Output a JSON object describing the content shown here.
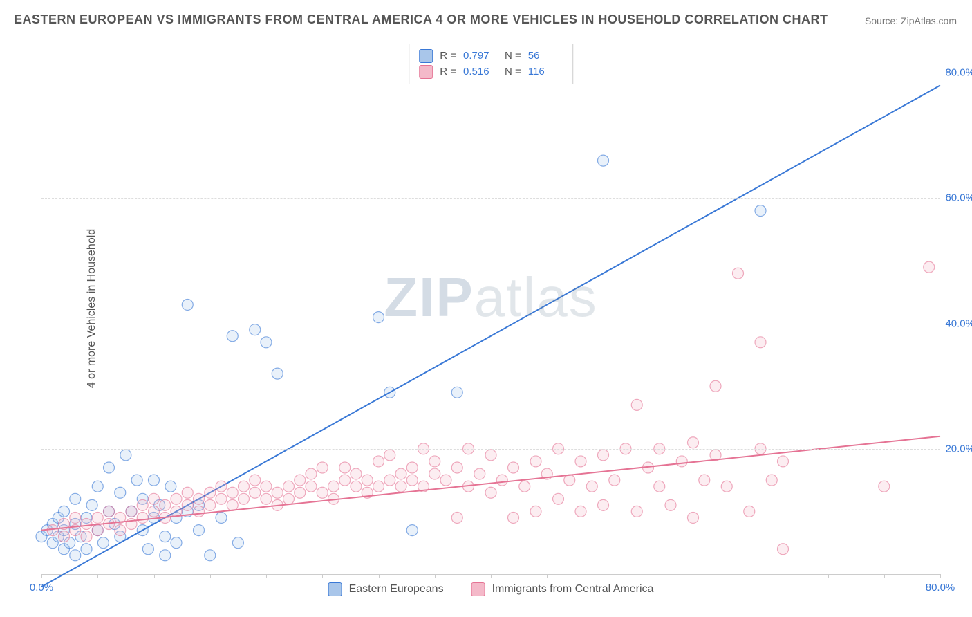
{
  "title": "EASTERN EUROPEAN VS IMMIGRANTS FROM CENTRAL AMERICA 4 OR MORE VEHICLES IN HOUSEHOLD CORRELATION CHART",
  "source": "Source: ZipAtlas.com",
  "ylabel": "4 or more Vehicles in Household",
  "watermark_a": "ZIP",
  "watermark_b": "atlas",
  "chart": {
    "type": "scatter",
    "xlim": [
      0,
      80
    ],
    "ylim": [
      0,
      85
    ],
    "xtick_labels": [
      "0.0%",
      "80.0%"
    ],
    "xtick_values": [
      0,
      80
    ],
    "ytick_labels": [
      "20.0%",
      "40.0%",
      "60.0%",
      "80.0%"
    ],
    "ytick_values": [
      20,
      40,
      60,
      80
    ],
    "xminor_step": 5,
    "grid_color": "#dddddd",
    "background_color": "#ffffff",
    "marker_radius": 8,
    "marker_stroke_width": 1.2,
    "marker_fill_opacity": 0.25,
    "line_width": 2,
    "series": [
      {
        "name": "Eastern Europeans",
        "color": "#3978d6",
        "fill": "#a9c6ea",
        "R": "0.797",
        "N": "56",
        "trend": {
          "x1": 0,
          "y1": -2,
          "x2": 80,
          "y2": 78
        },
        "points": [
          [
            0,
            6
          ],
          [
            0.5,
            7
          ],
          [
            1,
            5
          ],
          [
            1,
            8
          ],
          [
            1.5,
            6
          ],
          [
            1.5,
            9
          ],
          [
            2,
            4
          ],
          [
            2,
            7
          ],
          [
            2,
            10
          ],
          [
            2.5,
            5
          ],
          [
            3,
            8
          ],
          [
            3,
            3
          ],
          [
            3,
            12
          ],
          [
            3.5,
            6
          ],
          [
            4,
            9
          ],
          [
            4,
            4
          ],
          [
            4.5,
            11
          ],
          [
            5,
            7
          ],
          [
            5,
            14
          ],
          [
            5.5,
            5
          ],
          [
            6,
            10
          ],
          [
            6,
            17
          ],
          [
            6.5,
            8
          ],
          [
            7,
            13
          ],
          [
            7,
            6
          ],
          [
            7.5,
            19
          ],
          [
            8,
            10
          ],
          [
            8.5,
            15
          ],
          [
            9,
            7
          ],
          [
            9,
            12
          ],
          [
            9.5,
            4
          ],
          [
            10,
            9
          ],
          [
            10,
            15
          ],
          [
            10.5,
            11
          ],
          [
            11,
            6
          ],
          [
            11,
            3
          ],
          [
            11.5,
            14
          ],
          [
            12,
            9
          ],
          [
            12,
            5
          ],
          [
            13,
            10
          ],
          [
            13,
            43
          ],
          [
            14,
            7
          ],
          [
            14,
            11
          ],
          [
            15,
            3
          ],
          [
            16,
            9
          ],
          [
            17,
            38
          ],
          [
            17.5,
            5
          ],
          [
            19,
            39
          ],
          [
            20,
            37
          ],
          [
            21,
            32
          ],
          [
            30,
            41
          ],
          [
            31,
            29
          ],
          [
            33,
            7
          ],
          [
            37,
            29
          ],
          [
            50,
            66
          ],
          [
            64,
            58
          ]
        ]
      },
      {
        "name": "Immigrants from Central America",
        "color": "#e57394",
        "fill": "#f4b9c9",
        "R": "0.516",
        "N": "116",
        "trend": {
          "x1": 0,
          "y1": 7,
          "x2": 80,
          "y2": 22
        },
        "points": [
          [
            1,
            7
          ],
          [
            2,
            8
          ],
          [
            2,
            6
          ],
          [
            3,
            7
          ],
          [
            3,
            9
          ],
          [
            4,
            8
          ],
          [
            4,
            6
          ],
          [
            5,
            9
          ],
          [
            5,
            7
          ],
          [
            6,
            8
          ],
          [
            6,
            10
          ],
          [
            7,
            9
          ],
          [
            7,
            7
          ],
          [
            8,
            10
          ],
          [
            8,
            8
          ],
          [
            9,
            11
          ],
          [
            9,
            9
          ],
          [
            10,
            10
          ],
          [
            10,
            12
          ],
          [
            11,
            11
          ],
          [
            11,
            9
          ],
          [
            12,
            12
          ],
          [
            12,
            10
          ],
          [
            13,
            11
          ],
          [
            13,
            13
          ],
          [
            14,
            12
          ],
          [
            14,
            10
          ],
          [
            15,
            13
          ],
          [
            15,
            11
          ],
          [
            16,
            12
          ],
          [
            16,
            14
          ],
          [
            17,
            13
          ],
          [
            17,
            11
          ],
          [
            18,
            12
          ],
          [
            18,
            14
          ],
          [
            19,
            13
          ],
          [
            19,
            15
          ],
          [
            20,
            12
          ],
          [
            20,
            14
          ],
          [
            21,
            13
          ],
          [
            21,
            11
          ],
          [
            22,
            14
          ],
          [
            22,
            12
          ],
          [
            23,
            15
          ],
          [
            23,
            13
          ],
          [
            24,
            14
          ],
          [
            24,
            16
          ],
          [
            25,
            17
          ],
          [
            25,
            13
          ],
          [
            26,
            14
          ],
          [
            26,
            12
          ],
          [
            27,
            15
          ],
          [
            27,
            17
          ],
          [
            28,
            14
          ],
          [
            28,
            16
          ],
          [
            29,
            15
          ],
          [
            29,
            13
          ],
          [
            30,
            14
          ],
          [
            30,
            18
          ],
          [
            31,
            15
          ],
          [
            31,
            19
          ],
          [
            32,
            16
          ],
          [
            32,
            14
          ],
          [
            33,
            15
          ],
          [
            33,
            17
          ],
          [
            34,
            20
          ],
          [
            34,
            14
          ],
          [
            35,
            16
          ],
          [
            35,
            18
          ],
          [
            36,
            15
          ],
          [
            37,
            17
          ],
          [
            37,
            9
          ],
          [
            38,
            14
          ],
          [
            38,
            20
          ],
          [
            39,
            16
          ],
          [
            40,
            13
          ],
          [
            40,
            19
          ],
          [
            41,
            15
          ],
          [
            42,
            17
          ],
          [
            42,
            9
          ],
          [
            43,
            14
          ],
          [
            44,
            18
          ],
          [
            44,
            10
          ],
          [
            45,
            16
          ],
          [
            46,
            20
          ],
          [
            46,
            12
          ],
          [
            47,
            15
          ],
          [
            48,
            18
          ],
          [
            48,
            10
          ],
          [
            49,
            14
          ],
          [
            50,
            19
          ],
          [
            50,
            11
          ],
          [
            51,
            15
          ],
          [
            52,
            20
          ],
          [
            53,
            10
          ],
          [
            53,
            27
          ],
          [
            54,
            17
          ],
          [
            55,
            14
          ],
          [
            55,
            20
          ],
          [
            56,
            11
          ],
          [
            57,
            18
          ],
          [
            58,
            9
          ],
          [
            58,
            21
          ],
          [
            59,
            15
          ],
          [
            60,
            19
          ],
          [
            60,
            30
          ],
          [
            61,
            14
          ],
          [
            62,
            48
          ],
          [
            63,
            10
          ],
          [
            64,
            20
          ],
          [
            64,
            37
          ],
          [
            65,
            15
          ],
          [
            66,
            18
          ],
          [
            66,
            4
          ],
          [
            75,
            14
          ],
          [
            79,
            49
          ]
        ]
      }
    ],
    "legend_bottom": [
      {
        "label": "Eastern Europeans",
        "fill": "#a9c6ea",
        "stroke": "#3978d6"
      },
      {
        "label": "Immigrants from Central America",
        "fill": "#f4b9c9",
        "stroke": "#e57394"
      }
    ]
  }
}
